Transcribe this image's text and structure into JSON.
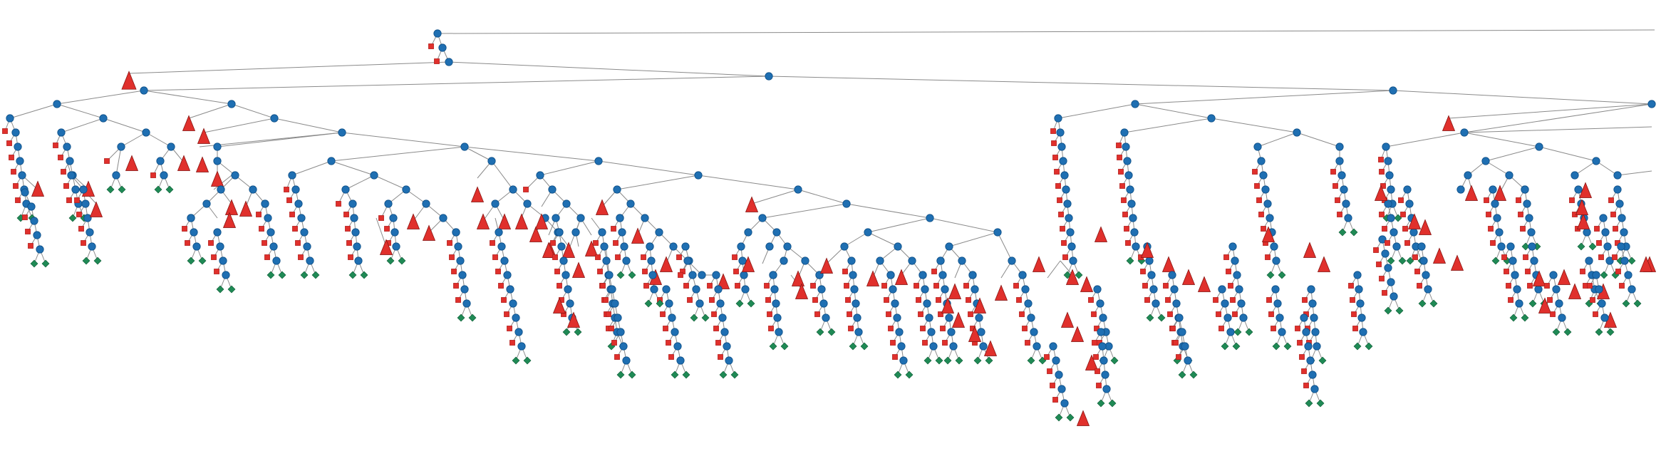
{
  "diagram": {
    "type": "game-tree",
    "colors": {
      "edge": "#8a8a8a",
      "decision_node": "#1f6fb2",
      "decision_stroke": "#0d4f87",
      "terminal_square": "#e0302c",
      "pruned_triangle": "#e0302c",
      "pruned_stroke": "#8b1613",
      "leaf_diamond": "#1f8a55",
      "leaf_stroke": "#0f5c36",
      "background": "#ffffff"
    },
    "node_kinds": [
      "decision-node",
      "terminal-square",
      "pruned-triangle",
      "leaf-diamond"
    ]
  }
}
